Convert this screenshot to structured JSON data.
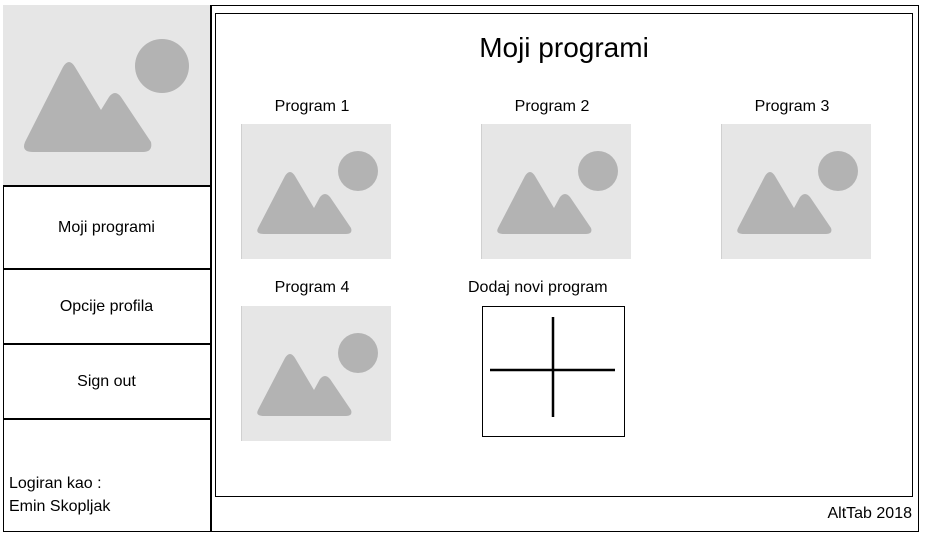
{
  "sidebar": {
    "logo_icon": "image-placeholder-icon",
    "items": [
      {
        "label": "Moji programi"
      },
      {
        "label": "Opcije profila"
      },
      {
        "label": "Sign out"
      }
    ],
    "logged_in_label": "Logiran kao :",
    "user_name": "Emin Skopljak"
  },
  "main": {
    "title": "Moji programi",
    "programs": [
      {
        "label": "Program 1",
        "icon": "image-placeholder-icon"
      },
      {
        "label": "Program 2",
        "icon": "image-placeholder-icon"
      },
      {
        "label": "Program 3",
        "icon": "image-placeholder-icon"
      },
      {
        "label": "Program 4",
        "icon": "image-placeholder-icon"
      }
    ],
    "add_program": {
      "label": "Dodaj novi program",
      "icon": "plus-icon"
    }
  },
  "footer": {
    "text": "AltTab 2018"
  },
  "colors": {
    "placeholder_bg": "#e6e6e6",
    "placeholder_shape": "#b3b3b3",
    "border": "#000000"
  }
}
